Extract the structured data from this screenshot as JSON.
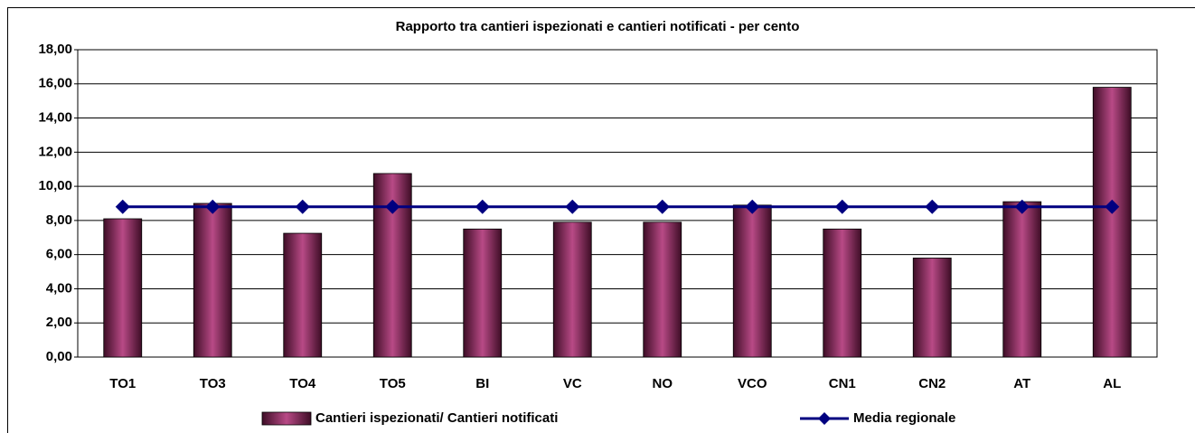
{
  "chart_data": {
    "type": "bar",
    "title": "Rapporto tra cantieri ispezionati e cantieri notificati - per cento",
    "categories": [
      "TO1",
      "TO3",
      "TO4",
      "TO5",
      "BI",
      "VC",
      "NO",
      "VCO",
      "CN1",
      "CN2",
      "AT",
      "AL"
    ],
    "series": [
      {
        "name": "Cantieri ispezionati/ Cantieri notificati",
        "type": "bar",
        "color": "#8b2a5a",
        "values": [
          8.1,
          9.0,
          7.25,
          10.75,
          7.5,
          7.9,
          7.9,
          8.9,
          7.5,
          5.8,
          9.1,
          15.8
        ]
      },
      {
        "name": "Media regionale",
        "type": "line",
        "color": "#000080",
        "values": [
          8.8,
          8.8,
          8.8,
          8.8,
          8.8,
          8.8,
          8.8,
          8.8,
          8.8,
          8.8,
          8.8,
          8.8
        ]
      }
    ],
    "ylim": [
      0,
      18
    ],
    "yticks": [
      {
        "value": 0,
        "label": "0,00"
      },
      {
        "value": 2,
        "label": "2,00"
      },
      {
        "value": 4,
        "label": "4,00"
      },
      {
        "value": 6,
        "label": "6,00"
      },
      {
        "value": 8,
        "label": "8,00"
      },
      {
        "value": 10,
        "label": "10,00"
      },
      {
        "value": 12,
        "label": "12,00"
      },
      {
        "value": 14,
        "label": "14,00"
      },
      {
        "value": 16,
        "label": "16,00"
      },
      {
        "value": 18,
        "label": "18,00"
      }
    ],
    "grid": true,
    "legend": "bottom"
  }
}
